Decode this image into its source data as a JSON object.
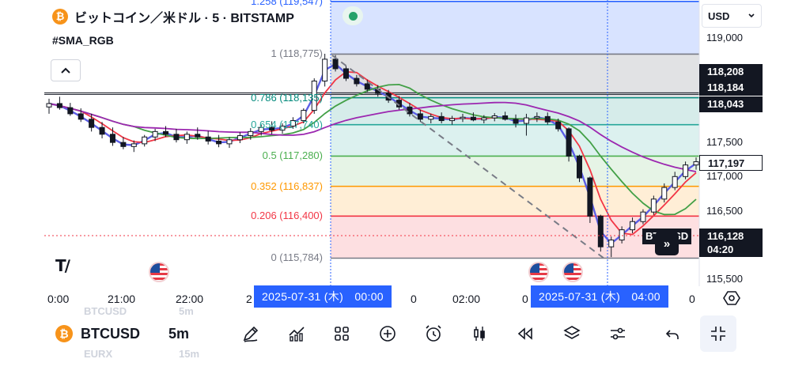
{
  "header": {
    "title": "ビットコイン／米ドル · 5 · BITSTAMP",
    "coin_symbol": "₿",
    "indicator": "#SMA_RGB",
    "collapse_icon": "chevron-up-icon",
    "currency": "USD"
  },
  "price_axis": {
    "ticks": [
      "119,000",
      "117,500",
      "117,000",
      "116,500",
      "115,500"
    ],
    "tags": {
      "high_a": "118,208",
      "high_b": "118,184",
      "sma": "118,043",
      "current": "117,197",
      "series_price": "116,128",
      "countdown": "04:20"
    },
    "series_label": "BTCUSD"
  },
  "fib_levels": [
    {
      "label": "1.258 (119,547)",
      "value": 119547,
      "color": "#2962ff"
    },
    {
      "label": "1 (118,775)",
      "value": 118775,
      "color": "#787b86"
    },
    {
      "label": "0.786 (118,135)",
      "value": 118135,
      "color": "#00897b"
    },
    {
      "label": "0.654 (117,740)",
      "value": 117740,
      "color": "#26a69a"
    },
    {
      "label": "0.5 (117,280)",
      "value": 117280,
      "color": "#4caf50"
    },
    {
      "label": "0.352 (116,837)",
      "value": 116837,
      "color": "#ff9800"
    },
    {
      "label": "0.206 (116,400)",
      "value": 116400,
      "color": "#f23645"
    },
    {
      "label": "0 (115,784)",
      "value": 115784,
      "color": "#787b86"
    }
  ],
  "time_axis": {
    "ticks": [
      "0:00",
      "21:00",
      "22:00",
      "2",
      "0",
      "02:00",
      "0",
      "0"
    ],
    "cursor_start": "2025-07-31 (木)　00:00",
    "cursor_end": "2025-07-31 (木)　04:00"
  },
  "chart_data": {
    "type": "candlestick",
    "symbol": "BTCUSD",
    "interval": "5m",
    "exchange": "BITSTAMP",
    "ylim": [
      115400,
      119700
    ],
    "candles": [
      [
        118000,
        118120,
        117900,
        118050
      ],
      [
        118050,
        118150,
        117960,
        117990
      ],
      [
        117990,
        118060,
        117870,
        117900
      ],
      [
        117900,
        117980,
        117780,
        117820
      ],
      [
        117820,
        117900,
        117640,
        117700
      ],
      [
        117700,
        117780,
        117540,
        117600
      ],
      [
        117600,
        117700,
        117430,
        117480
      ],
      [
        117480,
        117560,
        117380,
        117420
      ],
      [
        117420,
        117510,
        117340,
        117460
      ],
      [
        117460,
        117590,
        117420,
        117560
      ],
      [
        117560,
        117680,
        117500,
        117640
      ],
      [
        117640,
        117720,
        117560,
        117600
      ],
      [
        117600,
        117680,
        117480,
        117520
      ],
      [
        117520,
        117640,
        117460,
        117600
      ],
      [
        117600,
        117700,
        117520,
        117560
      ],
      [
        117560,
        117650,
        117450,
        117500
      ],
      [
        117500,
        117590,
        117410,
        117460
      ],
      [
        117460,
        117560,
        117400,
        117520
      ],
      [
        117520,
        117630,
        117470,
        117580
      ],
      [
        117580,
        117690,
        117520,
        117640
      ],
      [
        117640,
        117740,
        117580,
        117700
      ],
      [
        117700,
        117790,
        117600,
        117660
      ],
      [
        117660,
        117760,
        117610,
        117720
      ],
      [
        117720,
        117850,
        117680,
        117800
      ],
      [
        117800,
        117980,
        117760,
        117950
      ],
      [
        117950,
        118420,
        117900,
        118380
      ],
      [
        118380,
        118780,
        118300,
        118700
      ],
      [
        118700,
        118760,
        118520,
        118560
      ],
      [
        118560,
        118600,
        118380,
        118420
      ],
      [
        118420,
        118470,
        118300,
        118340
      ],
      [
        118340,
        118400,
        118220,
        118260
      ],
      [
        118260,
        118320,
        118150,
        118200
      ],
      [
        118200,
        118250,
        118060,
        118100
      ],
      [
        118100,
        118160,
        117960,
        118000
      ],
      [
        118000,
        118060,
        117860,
        117900
      ],
      [
        117900,
        117960,
        117780,
        117820
      ],
      [
        117820,
        117900,
        117760,
        117860
      ],
      [
        117860,
        117920,
        117760,
        117800
      ],
      [
        117800,
        117870,
        117740,
        117830
      ],
      [
        117830,
        117900,
        117780,
        117850
      ],
      [
        117850,
        117920,
        117790,
        117810
      ],
      [
        117810,
        117880,
        117760,
        117840
      ],
      [
        117840,
        117910,
        117790,
        117870
      ],
      [
        117870,
        117930,
        117800,
        117820
      ],
      [
        117820,
        117890,
        117700,
        117760
      ],
      [
        117760,
        117900,
        117580,
        117840
      ],
      [
        117840,
        117920,
        117780,
        117860
      ],
      [
        117860,
        117920,
        117740,
        117780
      ],
      [
        117780,
        117830,
        117640,
        117680
      ],
      [
        117680,
        117700,
        117200,
        117280
      ],
      [
        117280,
        117300,
        116900,
        116960
      ],
      [
        116960,
        116980,
        116300,
        116400
      ],
      [
        116400,
        116420,
        115880,
        115950
      ],
      [
        115950,
        116100,
        115800,
        116050
      ],
      [
        116050,
        116250,
        116000,
        116200
      ],
      [
        116200,
        116380,
        116150,
        116320
      ],
      [
        116320,
        116500,
        116280,
        116460
      ],
      [
        116460,
        116700,
        116420,
        116650
      ],
      [
        116650,
        116880,
        116600,
        116820
      ],
      [
        116820,
        117050,
        116780,
        116980
      ],
      [
        116980,
        117200,
        116940,
        117150
      ],
      [
        117150,
        117260,
        117080,
        117197
      ]
    ],
    "annotations": {
      "live_indicator": "green-dot",
      "vertical_cursor_times": [
        "2025-07-31 00:00",
        "2025-07-31 04:00"
      ]
    },
    "moving_averages": [
      {
        "color": "#5b5ee6",
        "period": "fast"
      },
      {
        "color": "#f23645",
        "period": "medium"
      },
      {
        "color": "#43a047",
        "period": "slow"
      },
      {
        "color": "#9c27b0",
        "period": "long"
      }
    ]
  },
  "toolbar": {
    "symbol": "BTCUSD",
    "interval": "5m",
    "ghost_left": "BTCUSD",
    "ghost_interval": "5m",
    "ghost_bottom": "EURX",
    "ghost_bottom_interval": "15m",
    "icons": [
      "pen-icon",
      "indicators-icon",
      "templates-icon",
      "add-icon",
      "alarm-icon",
      "candles-icon",
      "replay-icon",
      "layers-icon",
      "settings-sliders-icon",
      "undo-icon",
      "collapse-icon"
    ]
  }
}
